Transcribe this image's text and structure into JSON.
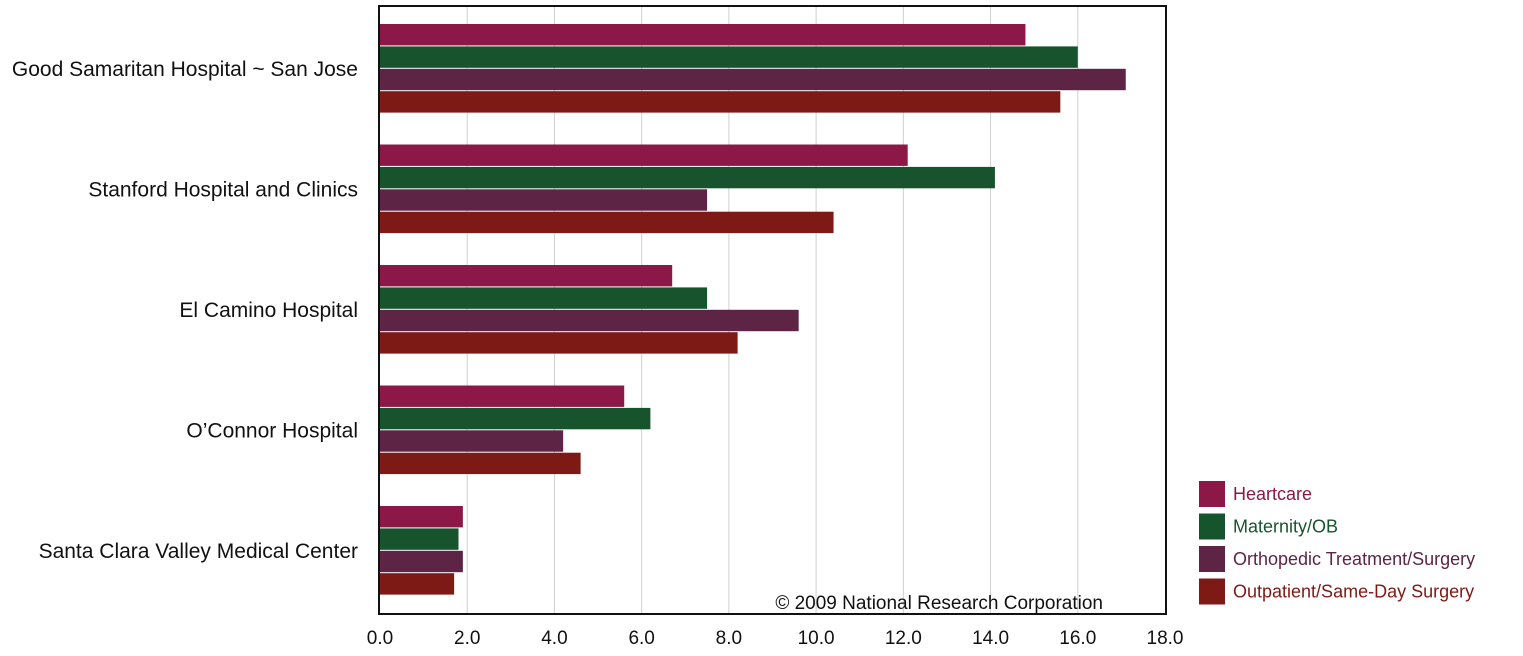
{
  "chart_data": {
    "type": "bar",
    "orientation": "horizontal",
    "categories": [
      "Good Samaritan Hospital ~ San Jose",
      "Stanford Hospital and Clinics",
      "El Camino Hospital",
      "O’Connor Hospital",
      "Santa Clara Valley Medical Center"
    ],
    "series": [
      {
        "name": "Heartcare",
        "color": "#8b1846",
        "values": [
          14.8,
          12.1,
          6.7,
          5.6,
          1.9
        ]
      },
      {
        "name": "Maternity/OB",
        "color": "#17532c",
        "values": [
          16.0,
          14.1,
          7.5,
          6.2,
          1.8
        ]
      },
      {
        "name": "Orthopedic Treatment/Surgery",
        "color": "#5d2446",
        "values": [
          17.1,
          7.5,
          9.6,
          4.2,
          1.9
        ]
      },
      {
        "name": "Outpatient/Same-Day Surgery",
        "color": "#7d1a16",
        "values": [
          15.6,
          10.4,
          8.2,
          4.6,
          1.7
        ]
      }
    ],
    "xlim": [
      0,
      18
    ],
    "ticks": [
      "0.0",
      "2.0",
      "4.0",
      "6.0",
      "8.0",
      "10.0",
      "12.0",
      "14.0",
      "16.0",
      "18.0"
    ],
    "grid": "vertical",
    "legend": "bottom-right, outside plot",
    "annotation": "© 2009 National Research Corporation"
  }
}
